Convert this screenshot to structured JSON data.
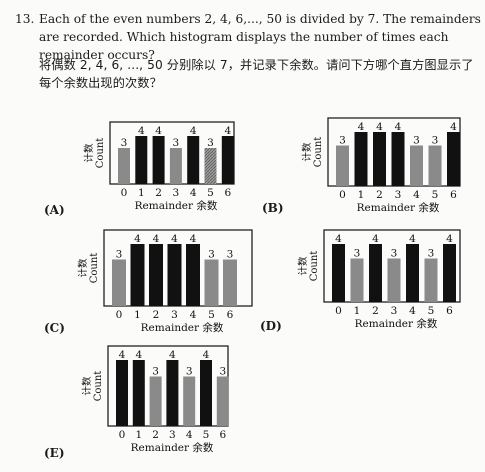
{
  "question": {
    "number": "13.",
    "text_en": "Each of the even numbers 2, 4, 6,..., 50 is divided by 7. The remainders are recorded. Which histogram displays the number of times each remainder occurs?",
    "text_zh": "将偶数 2, 4, 6, ..., 50 分别除以 7，并记录下余数。请问下方哪个直方图显示了每个余数出现的次数？"
  },
  "colors": {
    "dark": "#111111",
    "gray": "#8a8a8a",
    "frame": "#222222"
  },
  "chart_data": [
    {
      "option": "(A)",
      "type": "bar",
      "categories": [
        "0",
        "1",
        "2",
        "3",
        "4",
        "5",
        "6"
      ],
      "values": [
        3,
        4,
        4,
        3,
        4,
        3,
        4
      ],
      "shades": [
        "gray",
        "dark",
        "dark",
        "gray",
        "dark",
        "hatched",
        "dark"
      ],
      "xlabel": "Remainder 余数",
      "ylabel_en": "Count",
      "ylabel_zh": "计数",
      "ylim": [
        0,
        4
      ]
    },
    {
      "option": "(B)",
      "type": "bar",
      "categories": [
        "0",
        "1",
        "2",
        "3",
        "4",
        "5",
        "6"
      ],
      "values": [
        3,
        4,
        4,
        4,
        3,
        3,
        4
      ],
      "shades": [
        "gray",
        "dark",
        "dark",
        "dark",
        "gray",
        "gray",
        "dark"
      ],
      "xlabel": "Remainder 余数",
      "ylabel_en": "Count",
      "ylabel_zh": "计数",
      "ylim": [
        0,
        4
      ]
    },
    {
      "option": "(C)",
      "type": "bar",
      "categories": [
        "0",
        "1",
        "2",
        "3",
        "4",
        "5",
        "6"
      ],
      "values": [
        3,
        4,
        4,
        4,
        4,
        3,
        3
      ],
      "shades": [
        "gray",
        "dark",
        "dark",
        "dark",
        "dark",
        "gray",
        "gray"
      ],
      "xlabel": "Remainder 余数",
      "ylabel_en": "Count",
      "ylabel_zh": "计数",
      "ylim": [
        0,
        4
      ]
    },
    {
      "option": "(D)",
      "type": "bar",
      "categories": [
        "0",
        "1",
        "2",
        "3",
        "4",
        "5",
        "6"
      ],
      "values": [
        4,
        3,
        4,
        3,
        4,
        3,
        4
      ],
      "shades": [
        "dark",
        "gray",
        "dark",
        "gray",
        "dark",
        "gray",
        "dark"
      ],
      "xlabel": "Remainder 余数",
      "ylabel_en": "Count",
      "ylabel_zh": "计数",
      "ylim": [
        0,
        4
      ]
    },
    {
      "option": "(E)",
      "type": "bar",
      "categories": [
        "0",
        "1",
        "2",
        "3",
        "4",
        "5",
        "6"
      ],
      "values": [
        4,
        4,
        3,
        4,
        3,
        4,
        3
      ],
      "shades": [
        "dark",
        "dark",
        "gray",
        "dark",
        "gray",
        "dark",
        "gray"
      ],
      "xlabel": "Remainder 余数",
      "ylabel_en": "Count",
      "ylabel_zh": "计数",
      "ylim": [
        0,
        4
      ]
    }
  ]
}
